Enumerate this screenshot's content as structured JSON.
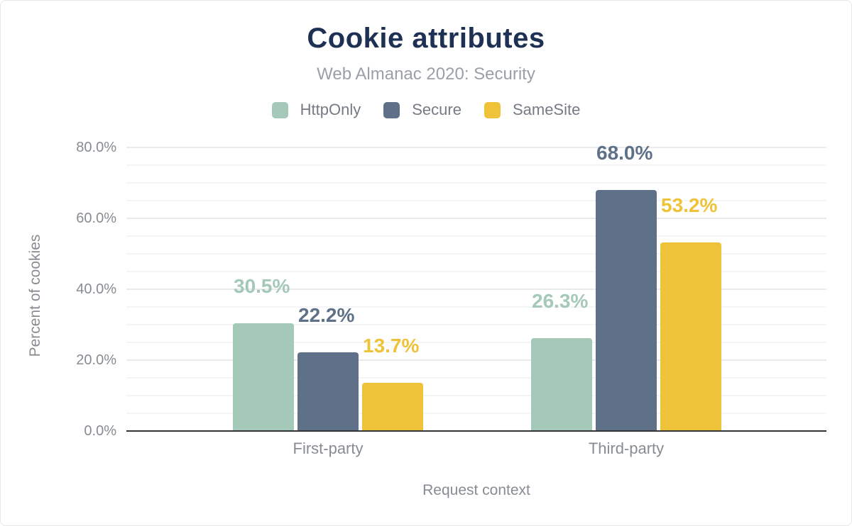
{
  "figure": {
    "title": "Cookie attributes",
    "subtitle": "Web Almanac 2020: Security"
  },
  "colors": {
    "title_text": "#1e3054",
    "subtitle_text": "#9aa0a6",
    "axis_text": "#878c92",
    "legend_text": "#757b83",
    "httponly": "#a5c9b8",
    "secure": "#5e7189",
    "samesite": "#eec33a"
  },
  "chart_data": {
    "type": "bar",
    "title": "Cookie attributes",
    "subtitle": "Web Almanac 2020: Security",
    "categories": [
      "First-party",
      "Third-party"
    ],
    "series": [
      {
        "name": "HttpOnly",
        "color": "#a5c9b8",
        "values": [
          30.5,
          26.3
        ],
        "labels": [
          "30.5%",
          "26.3%"
        ]
      },
      {
        "name": "Secure",
        "color": "#5e7189",
        "values": [
          22.2,
          68.0
        ],
        "labels": [
          "22.2%",
          "68.0%"
        ]
      },
      {
        "name": "SameSite",
        "color": "#eec33a",
        "values": [
          13.7,
          53.2
        ],
        "labels": [
          "13.7%",
          "53.2%"
        ]
      }
    ],
    "xlabel": "Request context",
    "ylabel": "Percent of cookies",
    "ylim": [
      0,
      80
    ],
    "ytick_major_step": 20,
    "ytick_minor_step": 5,
    "ytick_labels": [
      "0.0%",
      "20.0%",
      "40.0%",
      "60.0%",
      "80.0%"
    ],
    "legend_position": "top",
    "grid": true
  }
}
